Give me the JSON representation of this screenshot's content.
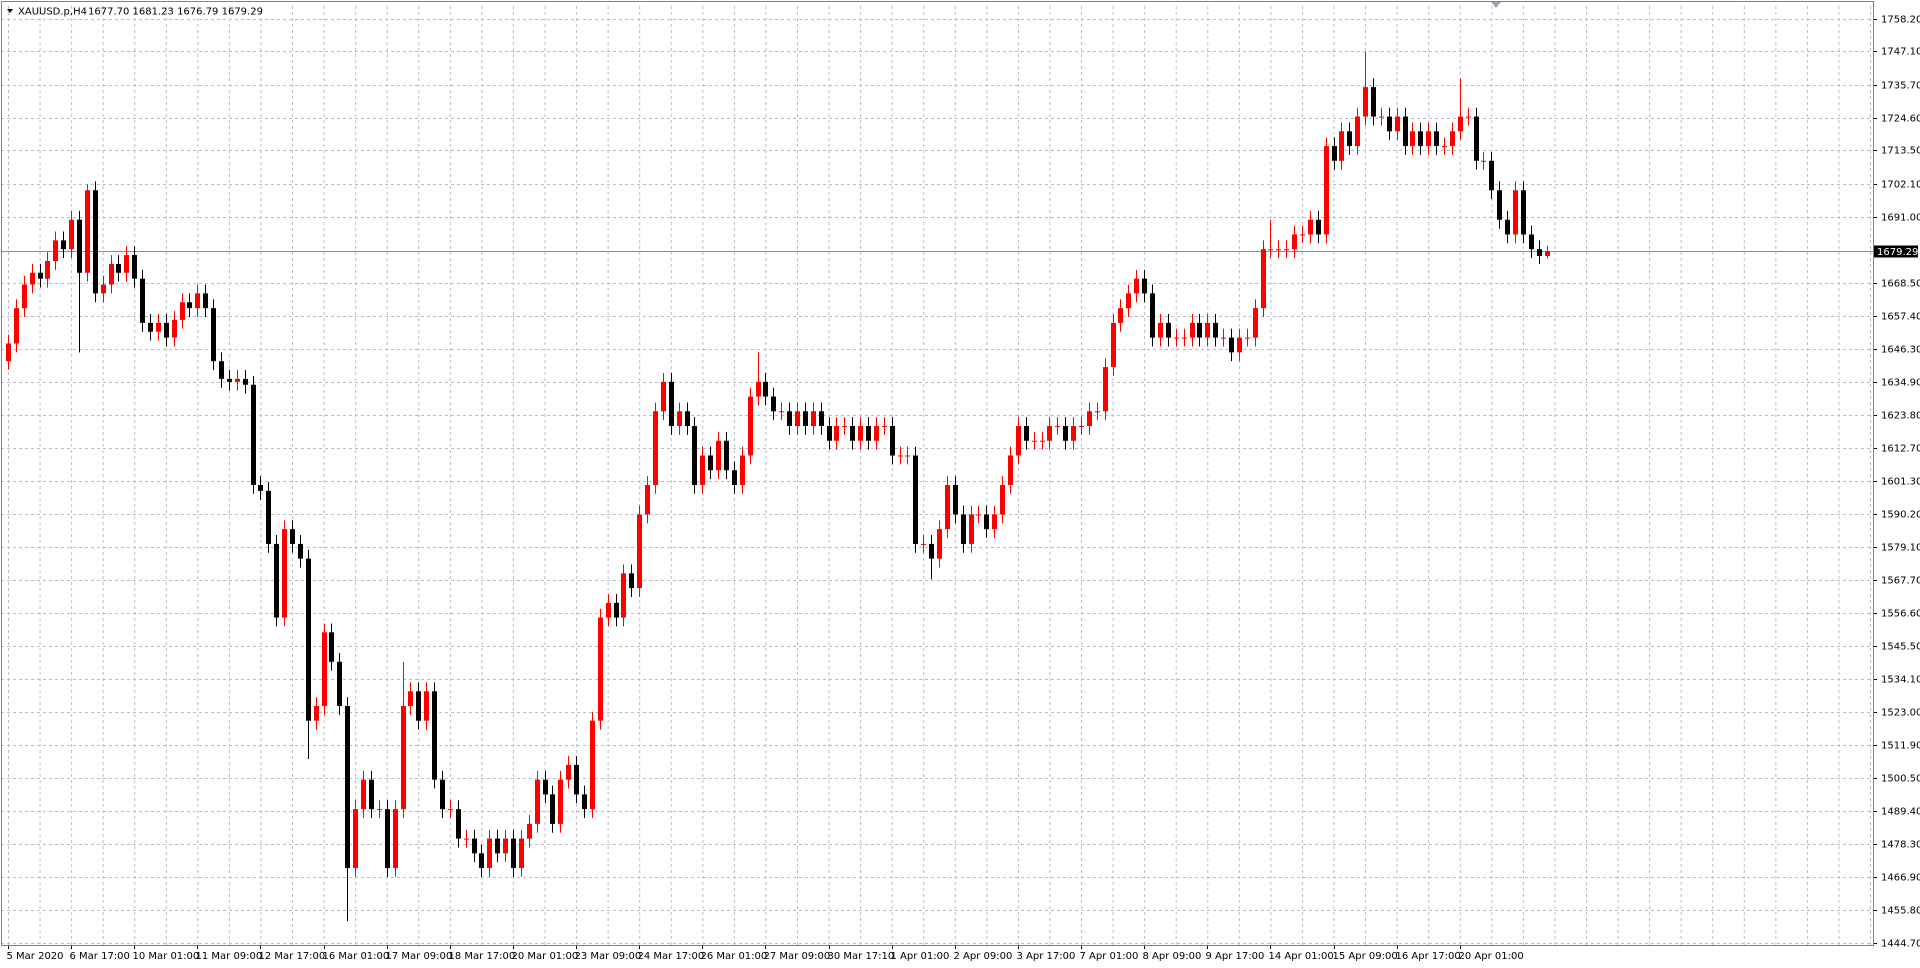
{
  "chart_data": {
    "type": "candlestick",
    "title": "XAUUSD.p,H4",
    "ohlc_text": "1677.70 1681.23 1676.79 1679.29",
    "categories": [
      "5 Mar 2020",
      null,
      null,
      null,
      null,
      null,
      null,
      null,
      "6 Mar 17:00",
      null,
      null,
      null,
      null,
      null,
      null,
      null,
      "10 Mar 01:00",
      null,
      null,
      null,
      null,
      null,
      null,
      null,
      "11 Mar 09:00",
      null,
      null,
      null,
      null,
      null,
      null,
      null,
      "12 Mar 17:00",
      null,
      null,
      null,
      null,
      null,
      null,
      null,
      "16 Mar 01:00",
      null,
      null,
      null,
      null,
      null,
      null,
      null,
      "17 Mar 09:00",
      null,
      null,
      null,
      null,
      null,
      null,
      null,
      "18 Mar 17:00",
      null,
      null,
      null,
      null,
      null,
      null,
      null,
      "20 Mar 01:00",
      null,
      null,
      null,
      null,
      null,
      null,
      null,
      "23 Mar 09:00",
      null,
      null,
      null,
      null,
      null,
      null,
      null,
      "24 Mar 17:00",
      null,
      null,
      null,
      null,
      null,
      null,
      null,
      "26 Mar 01:00",
      null,
      null,
      null,
      null,
      null,
      null,
      null,
      "27 Mar 09:00",
      null,
      null,
      null,
      null,
      null,
      null,
      null,
      "30 Mar 17:10",
      null,
      null,
      null,
      null,
      null,
      null,
      null,
      "1 Apr 01:00",
      null,
      null,
      null,
      null,
      null,
      null,
      null,
      "2 Apr 09:00",
      null,
      null,
      null,
      null,
      null,
      null,
      null,
      "3 Apr 17:00",
      null,
      null,
      null,
      null,
      null,
      null,
      null,
      "7 Apr 01:00",
      null,
      null,
      null,
      null,
      null,
      null,
      null,
      "8 Apr 09:00",
      null,
      null,
      null,
      null,
      null,
      null,
      null,
      "9 Apr 17:00",
      null,
      null,
      null,
      null,
      null,
      null,
      null,
      "14 Apr 01:00",
      null,
      null,
      null,
      null,
      null,
      null,
      null,
      "15 Apr 09:00",
      null,
      null,
      null,
      null,
      null,
      null,
      null,
      "16 Apr 17:00",
      null,
      null,
      null,
      null,
      null,
      null,
      null,
      "20 Apr 01:00",
      null,
      null,
      null,
      null,
      null,
      null,
      null,
      null,
      null,
      null,
      null
    ],
    "open": [
      1642,
      1648,
      1660,
      1668,
      1672,
      1670,
      1676,
      1683,
      1680,
      1690,
      1672,
      1700,
      1665,
      1668,
      1675,
      1672,
      1678,
      1670,
      1655,
      1652,
      1655,
      1650,
      1656,
      1662,
      1660,
      1665,
      1660,
      1642,
      1636,
      1635,
      1636,
      1634,
      1600,
      1598,
      1580,
      1555,
      1585,
      1580,
      1575,
      1520,
      1525,
      1550,
      1540,
      1525,
      1470,
      1490,
      1500,
      1490,
      1490,
      1470,
      1490,
      1525,
      1530,
      1520,
      1530,
      1500,
      1490,
      1490,
      1480,
      1480,
      1475,
      1470,
      1480,
      1475,
      1480,
      1470,
      1480,
      1485,
      1500,
      1495,
      1485,
      1500,
      1505,
      1495,
      1490,
      1520,
      1555,
      1560,
      1555,
      1570,
      1565,
      1590,
      1600,
      1625,
      1635,
      1620,
      1625,
      1620,
      1600,
      1610,
      1605,
      1615,
      1605,
      1600,
      1610,
      1630,
      1635,
      1630,
      1625,
      1625,
      1620,
      1625,
      1620,
      1625,
      1620,
      1615,
      1620,
      1620,
      1615,
      1620,
      1615,
      1620,
      1620,
      1610,
      1610,
      1610,
      1580,
      1580,
      1575,
      1585,
      1600,
      1590,
      1580,
      1590,
      1590,
      1585,
      1590,
      1600,
      1610,
      1620,
      1615,
      1615,
      1615,
      1620,
      1620,
      1615,
      1620,
      1620,
      1625,
      1625,
      1640,
      1655,
      1660,
      1665,
      1670,
      1665,
      1650,
      1655,
      1650,
      1650,
      1650,
      1655,
      1650,
      1655,
      1650,
      1650,
      1645,
      1650,
      1650,
      1660,
      1680,
      1680,
      1680,
      1680,
      1685,
      1685,
      1690,
      1685,
      1715,
      1710,
      1720,
      1715,
      1725,
      1735,
      1725,
      1725,
      1720,
      1725,
      1715,
      1720,
      1715,
      1720,
      1715,
      1715,
      1720,
      1725,
      1725,
      1710,
      1710,
      1700,
      1690,
      1685,
      1700,
      1685,
      1680,
      1677.7
    ],
    "high": [
      1651,
      1663,
      1671,
      1675,
      1675,
      1679,
      1686,
      1686,
      1693,
      1693,
      1702,
      1703,
      1671,
      1678,
      1678,
      1681,
      1681,
      1673,
      1658,
      1658,
      1658,
      1659,
      1665,
      1665,
      1668,
      1668,
      1663,
      1645,
      1639,
      1639,
      1639,
      1637,
      1603,
      1601,
      1583,
      1588,
      1588,
      1583,
      1578,
      1528,
      1553,
      1553,
      1543,
      1528,
      1493,
      1503,
      1503,
      1493,
      1493,
      1493,
      1540,
      1533,
      1533,
      1533,
      1533,
      1503,
      1493,
      1493,
      1483,
      1483,
      1478,
      1483,
      1483,
      1483,
      1483,
      1483,
      1488,
      1503,
      1503,
      1498,
      1503,
      1508,
      1508,
      1498,
      1523,
      1558,
      1563,
      1563,
      1573,
      1573,
      1593,
      1603,
      1628,
      1638,
      1638,
      1628,
      1628,
      1623,
      1613,
      1613,
      1618,
      1618,
      1608,
      1613,
      1633,
      1645,
      1638,
      1633,
      1628,
      1628,
      1628,
      1628,
      1628,
      1628,
      1623,
      1623,
      1623,
      1623,
      1623,
      1623,
      1623,
      1623,
      1623,
      1613,
      1613,
      1613,
      1583,
      1583,
      1588,
      1603,
      1603,
      1593,
      1593,
      1593,
      1593,
      1593,
      1603,
      1613,
      1623,
      1623,
      1618,
      1618,
      1623,
      1623,
      1623,
      1623,
      1623,
      1628,
      1628,
      1643,
      1658,
      1663,
      1668,
      1673,
      1673,
      1668,
      1658,
      1658,
      1653,
      1653,
      1658,
      1658,
      1658,
      1658,
      1653,
      1653,
      1653,
      1653,
      1663,
      1683,
      1690,
      1683,
      1683,
      1688,
      1688,
      1693,
      1693,
      1718,
      1718,
      1723,
      1723,
      1728,
      1747,
      1738,
      1728,
      1728,
      1728,
      1728,
      1723,
      1723,
      1723,
      1723,
      1718,
      1723,
      1738,
      1728,
      1728,
      1713,
      1713,
      1703,
      1693,
      1703,
      1703,
      1688,
      1683,
      1681.23
    ],
    "low": [
      1639,
      1645,
      1657,
      1665,
      1667,
      1667,
      1673,
      1677,
      1677,
      1645,
      1669,
      1662,
      1662,
      1665,
      1669,
      1669,
      1667,
      1652,
      1649,
      1649,
      1647,
      1647,
      1653,
      1657,
      1657,
      1657,
      1639,
      1633,
      1632,
      1632,
      1631,
      1597,
      1595,
      1577,
      1552,
      1552,
      1577,
      1572,
      1507,
      1517,
      1522,
      1537,
      1522,
      1452,
      1467,
      1487,
      1487,
      1487,
      1467,
      1467,
      1487,
      1522,
      1517,
      1517,
      1497,
      1487,
      1487,
      1477,
      1477,
      1472,
      1467,
      1467,
      1472,
      1472,
      1467,
      1467,
      1477,
      1482,
      1492,
      1482,
      1482,
      1497,
      1492,
      1487,
      1487,
      1517,
      1552,
      1552,
      1552,
      1562,
      1562,
      1587,
      1597,
      1622,
      1617,
      1617,
      1617,
      1597,
      1597,
      1602,
      1602,
      1602,
      1597,
      1597,
      1607,
      1627,
      1627,
      1622,
      1622,
      1617,
      1617,
      1617,
      1617,
      1617,
      1612,
      1612,
      1617,
      1612,
      1612,
      1612,
      1612,
      1617,
      1607,
      1607,
      1607,
      1577,
      1577,
      1568,
      1572,
      1582,
      1587,
      1577,
      1577,
      1587,
      1582,
      1582,
      1587,
      1597,
      1607,
      1612,
      1612,
      1612,
      1612,
      1617,
      1612,
      1612,
      1617,
      1617,
      1622,
      1622,
      1637,
      1652,
      1657,
      1662,
      1662,
      1647,
      1647,
      1647,
      1647,
      1647,
      1647,
      1647,
      1647,
      1647,
      1647,
      1642,
      1642,
      1647,
      1647,
      1657,
      1677,
      1677,
      1677,
      1677,
      1682,
      1682,
      1682,
      1682,
      1707,
      1707,
      1712,
      1712,
      1722,
      1722,
      1722,
      1717,
      1717,
      1712,
      1712,
      1712,
      1712,
      1712,
      1712,
      1712,
      1717,
      1722,
      1707,
      1707,
      1697,
      1687,
      1682,
      1682,
      1682,
      1677,
      1675,
      1676.79
    ],
    "close": [
      1648,
      1660,
      1668,
      1672,
      1670,
      1676,
      1683,
      1680,
      1690,
      1672,
      1700,
      1665,
      1668,
      1675,
      1672,
      1678,
      1670,
      1655,
      1652,
      1655,
      1650,
      1656,
      1662,
      1660,
      1665,
      1660,
      1642,
      1636,
      1635,
      1636,
      1634,
      1600,
      1598,
      1580,
      1555,
      1585,
      1580,
      1575,
      1520,
      1525,
      1550,
      1540,
      1525,
      1470,
      1490,
      1500,
      1490,
      1490,
      1470,
      1490,
      1525,
      1530,
      1520,
      1530,
      1500,
      1490,
      1490,
      1480,
      1480,
      1475,
      1470,
      1480,
      1475,
      1480,
      1470,
      1480,
      1485,
      1500,
      1495,
      1485,
      1500,
      1505,
      1495,
      1490,
      1520,
      1555,
      1560,
      1555,
      1570,
      1565,
      1590,
      1600,
      1625,
      1635,
      1620,
      1625,
      1620,
      1600,
      1610,
      1605,
      1615,
      1605,
      1600,
      1610,
      1630,
      1635,
      1630,
      1625,
      1625,
      1620,
      1625,
      1620,
      1625,
      1620,
      1615,
      1620,
      1620,
      1615,
      1620,
      1615,
      1620,
      1620,
      1610,
      1610,
      1610,
      1580,
      1580,
      1575,
      1585,
      1600,
      1590,
      1580,
      1590,
      1590,
      1585,
      1590,
      1600,
      1610,
      1620,
      1615,
      1615,
      1615,
      1620,
      1620,
      1615,
      1620,
      1620,
      1625,
      1625,
      1640,
      1655,
      1660,
      1665,
      1670,
      1665,
      1650,
      1655,
      1650,
      1650,
      1650,
      1655,
      1650,
      1655,
      1650,
      1650,
      1645,
      1650,
      1650,
      1660,
      1680,
      1680,
      1680,
      1680,
      1685,
      1685,
      1690,
      1685,
      1715,
      1710,
      1720,
      1715,
      1725,
      1735,
      1725,
      1725,
      1720,
      1725,
      1715,
      1720,
      1715,
      1720,
      1715,
      1715,
      1720,
      1725,
      1725,
      1710,
      1710,
      1700,
      1690,
      1685,
      1700,
      1685,
      1680,
      1677.7,
      1679.29
    ],
    "up_color": "#ff0000",
    "down_color": "#000000",
    "ylim": [
      1443.9,
      1763.2
    ],
    "yticks": [
      {
        "value": 1758.2,
        "label": "1758.20"
      },
      {
        "value": 1747.1,
        "label": "1747.10"
      },
      {
        "value": 1735.7,
        "label": "1735.70"
      },
      {
        "value": 1724.6,
        "label": "1724.60"
      },
      {
        "value": 1713.5,
        "label": "1713.50"
      },
      {
        "value": 1702.1,
        "label": "1702.10"
      },
      {
        "value": 1691,
        "label": "1691.00"
      },
      {
        "value": 1668.5,
        "label": "1668.50"
      },
      {
        "value": 1657.4,
        "label": "1657.40"
      },
      {
        "value": 1646.3,
        "label": "1646.30"
      },
      {
        "value": 1634.9,
        "label": "1634.90"
      },
      {
        "value": 1623.8,
        "label": "1623.80"
      },
      {
        "value": 1612.7,
        "label": "1612.70"
      },
      {
        "value": 1601.3,
        "label": "1601.30"
      },
      {
        "value": 1590.2,
        "label": "1590.20"
      },
      {
        "value": 1579.1,
        "label": "1579.10"
      },
      {
        "value": 1567.7,
        "label": "1567.70"
      },
      {
        "value": 1556.6,
        "label": "1556.60"
      },
      {
        "value": 1545.5,
        "label": "1545.50"
      },
      {
        "value": 1534.1,
        "label": "1534.10"
      },
      {
        "value": 1523,
        "label": "1523.00"
      },
      {
        "value": 1511.9,
        "label": "1511.90"
      },
      {
        "value": 1500.5,
        "label": "1500.50"
      },
      {
        "value": 1489.4,
        "label": "1489.40"
      },
      {
        "value": 1478.3,
        "label": "1478.30"
      },
      {
        "value": 1466.9,
        "label": "1466.90"
      },
      {
        "value": 1455.8,
        "label": "1455.80"
      },
      {
        "value": 1444.7,
        "label": "1444.70"
      }
    ],
    "current_price": 1679.29,
    "current_price_color": "#8090a8",
    "grid": true,
    "grid_color": "#b8bec8"
  }
}
